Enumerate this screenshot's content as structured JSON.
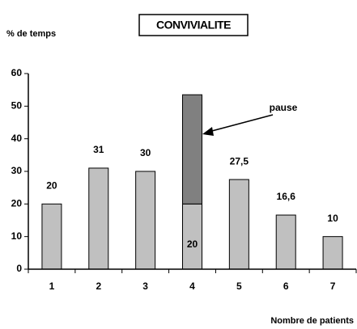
{
  "chart_data": {
    "type": "stacked-bar",
    "title": "CONVIVIALITE",
    "y_label": "% de temps",
    "x_label": "Nombre de patients",
    "categories": [
      "1",
      "2",
      "3",
      "4",
      "5",
      "6",
      "7"
    ],
    "series": [
      {
        "color": "#c0c0c0",
        "values": [
          20,
          31,
          30,
          20,
          27.5,
          16.6,
          10
        ],
        "value_labels": [
          "20",
          "31",
          "30",
          "20",
          "27,5",
          "16,6",
          "10"
        ]
      },
      {
        "name": "pause",
        "color": "#808080",
        "values": [
          null,
          null,
          null,
          33.5,
          null,
          null,
          null
        ]
      }
    ],
    "ylim": [
      0,
      60
    ],
    "yticks": [
      0,
      10,
      20,
      30,
      40,
      50,
      60
    ],
    "grid": false
  }
}
